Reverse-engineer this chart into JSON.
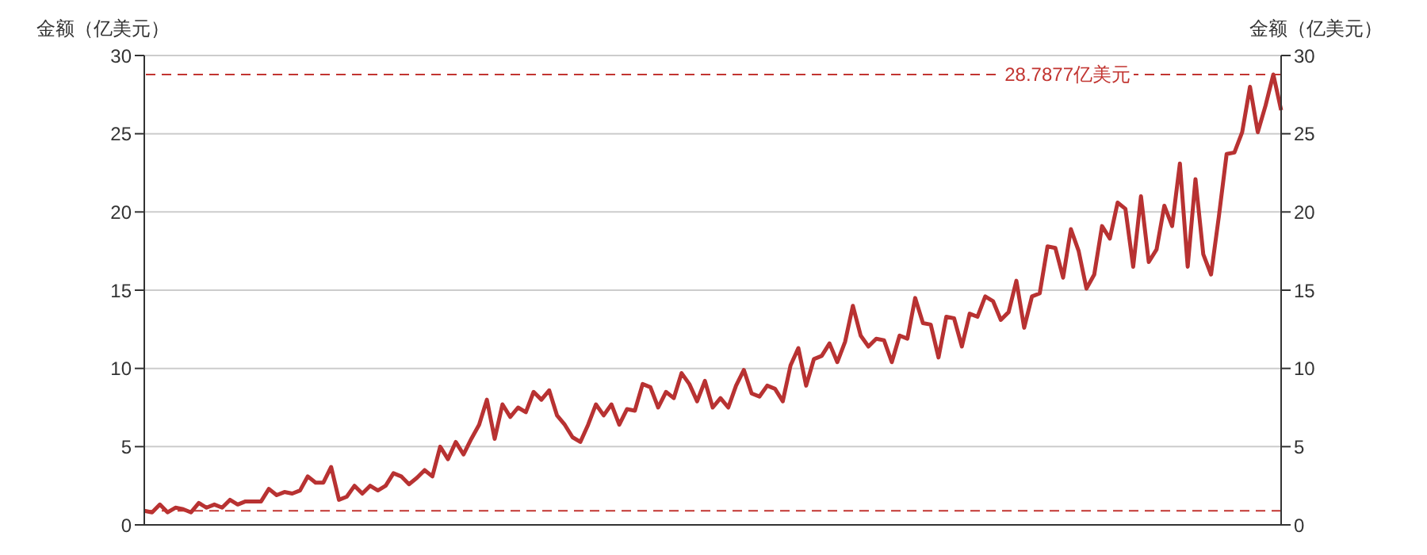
{
  "chart_data": {
    "type": "line",
    "ylabel": "金额（亿美元）",
    "y2label": "金额（亿美元）",
    "categories": [
      null,
      null,
      null,
      null,
      null,
      null,
      null,
      null,
      null,
      null,
      null,
      null,
      null,
      null,
      null,
      null,
      null,
      null,
      null,
      null,
      null,
      null,
      null,
      null,
      null,
      null,
      null,
      null,
      null,
      null,
      null,
      null,
      null,
      null,
      null,
      null,
      null,
      null,
      null,
      null,
      null,
      null,
      null,
      null,
      null,
      null,
      null,
      null,
      null,
      null,
      null,
      null,
      null,
      null,
      null,
      null,
      null,
      null,
      null,
      null,
      null,
      null,
      null,
      null,
      null,
      null,
      null,
      null,
      null,
      null,
      null,
      null,
      null,
      null,
      null,
      null,
      null,
      null,
      null,
      null,
      null,
      null,
      null,
      null,
      null,
      null,
      null,
      null,
      null,
      null,
      null,
      null,
      null,
      null,
      null,
      null,
      null,
      null,
      null,
      null,
      null,
      null,
      null,
      null,
      null,
      null,
      null,
      null,
      null,
      null,
      null,
      null,
      null,
      null,
      null,
      null,
      null,
      null,
      null,
      null,
      null,
      null,
      null,
      null,
      null,
      null,
      null,
      null,
      null,
      null,
      null,
      null,
      null,
      null,
      null,
      null,
      null,
      null,
      null,
      null,
      null,
      null,
      null,
      null,
      null,
      null,
      null
    ],
    "series": [
      {
        "color": "#b83232",
        "values": [
          0.9,
          0.8,
          1.3,
          0.8,
          1.1,
          1.0,
          0.8,
          1.4,
          1.1,
          1.3,
          1.1,
          1.6,
          1.3,
          1.5,
          1.5,
          1.5,
          2.3,
          1.9,
          2.1,
          2.0,
          2.2,
          3.1,
          2.7,
          2.7,
          3.7,
          1.6,
          1.8,
          2.5,
          2.0,
          2.5,
          2.2,
          2.5,
          3.3,
          3.1,
          2.6,
          3.0,
          3.5,
          3.1,
          5.0,
          4.2,
          5.3,
          4.5,
          5.5,
          6.4,
          8.0,
          5.5,
          7.7,
          6.9,
          7.5,
          7.2,
          8.5,
          8.0,
          8.6,
          7.0,
          6.4,
          5.6,
          5.3,
          6.4,
          7.7,
          7.0,
          7.7,
          6.4,
          7.4,
          7.3,
          9.0,
          8.8,
          7.5,
          8.5,
          8.1,
          9.7,
          9.0,
          7.9,
          9.2,
          7.5,
          8.1,
          7.5,
          8.9,
          9.9,
          8.4,
          8.2,
          8.9,
          8.7,
          7.9,
          10.2,
          11.3,
          8.9,
          10.6,
          10.8,
          11.6,
          10.4,
          11.7,
          14.0,
          12.1,
          11.4,
          11.9,
          11.8,
          10.4,
          12.1,
          11.9,
          14.5,
          12.9,
          12.8,
          10.7,
          13.3,
          13.2,
          11.4,
          13.5,
          13.3,
          14.6,
          14.3,
          13.1,
          13.6,
          15.6,
          12.6,
          14.6,
          14.8,
          17.8,
          17.7,
          15.8,
          18.9,
          17.5,
          15.1,
          16.0,
          19.1,
          18.3,
          20.6,
          20.2,
          16.5,
          21.0,
          16.8,
          17.6,
          20.4,
          19.1,
          23.1,
          16.5,
          22.1,
          17.3,
          16.0,
          19.7,
          23.7,
          23.8,
          25.1,
          28.0,
          25.1,
          26.8,
          28.7877,
          26.5
        ]
      }
    ],
    "ylim": [
      0,
      30
    ],
    "yticks": [
      0,
      5,
      10,
      15,
      20,
      25,
      30
    ],
    "y2lim": [
      0,
      30
    ],
    "y2ticks": [
      0,
      5,
      10,
      15,
      20,
      25,
      30
    ],
    "grid": "y",
    "legend": false,
    "marker": "none",
    "line_style": "solid",
    "ref_lines": [
      {
        "axis": "y2",
        "value": 28.7877,
        "label": "28.7877亿美元",
        "color": "#c23531",
        "line_style": "dashed"
      },
      {
        "axis": "y2",
        "value": 0.9,
        "label": null,
        "color": "#c23531",
        "line_style": "dashed"
      }
    ]
  }
}
